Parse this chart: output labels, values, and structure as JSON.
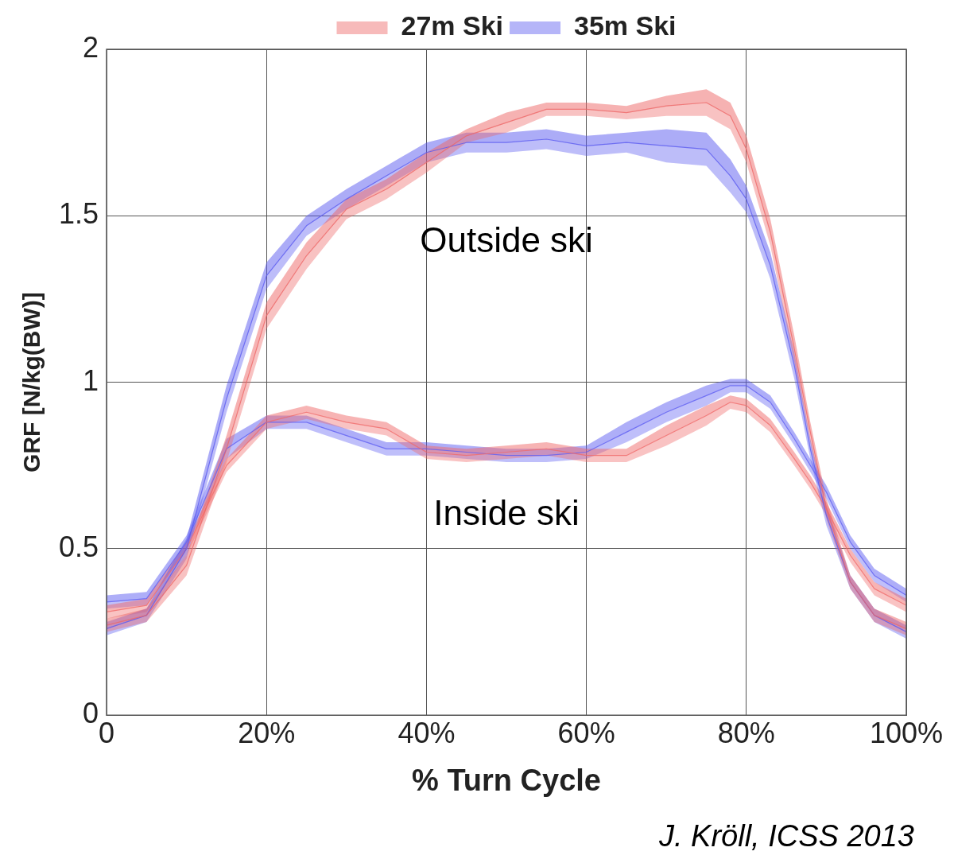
{
  "chart_data": {
    "type": "line",
    "xlabel": "% Turn Cycle",
    "ylabel": "GRF [N/kg(BW)]",
    "xlim": [
      0,
      100
    ],
    "ylim": [
      0,
      2
    ],
    "xticks": [
      0,
      {
        "value": 20,
        "label": "20%"
      },
      {
        "value": 40,
        "label": "40%"
      },
      {
        "value": 60,
        "label": "60%"
      },
      {
        "value": 80,
        "label": "80%"
      },
      {
        "value": 100,
        "label": "100%"
      }
    ],
    "yticks": [
      0,
      0.5,
      1,
      1.5,
      2
    ],
    "grid": true,
    "legend": "top",
    "x": [
      0,
      5,
      10,
      15,
      20,
      25,
      30,
      35,
      40,
      45,
      50,
      55,
      60,
      65,
      70,
      75,
      78,
      80,
      83,
      86,
      88,
      90,
      93,
      96,
      100
    ],
    "series": [
      {
        "name": "27m Ski",
        "color": "#ee6666",
        "values": [
          0.27,
          0.3,
          0.45,
          0.8,
          1.2,
          1.38,
          1.52,
          1.58,
          1.66,
          1.74,
          1.78,
          1.82,
          1.82,
          1.81,
          1.83,
          1.84,
          1.8,
          1.7,
          1.45,
          1.1,
          0.85,
          0.62,
          0.4,
          0.3,
          0.26
        ],
        "lower": [
          0.25,
          0.28,
          0.42,
          0.76,
          1.16,
          1.34,
          1.49,
          1.55,
          1.63,
          1.72,
          1.75,
          1.8,
          1.8,
          1.79,
          1.8,
          1.8,
          1.76,
          1.66,
          1.41,
          1.06,
          0.82,
          0.59,
          0.38,
          0.28,
          0.24
        ],
        "upper": [
          0.29,
          0.32,
          0.48,
          0.84,
          1.24,
          1.42,
          1.55,
          1.61,
          1.69,
          1.76,
          1.81,
          1.84,
          1.84,
          1.83,
          1.86,
          1.88,
          1.84,
          1.74,
          1.49,
          1.14,
          0.88,
          0.65,
          0.42,
          0.32,
          0.28
        ]
      },
      {
        "name": "35m Ski",
        "color": "#5a5af0",
        "values": [
          0.26,
          0.3,
          0.5,
          0.95,
          1.32,
          1.47,
          1.55,
          1.62,
          1.69,
          1.72,
          1.72,
          1.73,
          1.71,
          1.72,
          1.71,
          1.7,
          1.62,
          1.55,
          1.35,
          1.05,
          0.8,
          0.6,
          0.4,
          0.3,
          0.25
        ],
        "lower": [
          0.24,
          0.28,
          0.47,
          0.91,
          1.28,
          1.44,
          1.52,
          1.59,
          1.66,
          1.69,
          1.69,
          1.7,
          1.68,
          1.69,
          1.66,
          1.65,
          1.57,
          1.51,
          1.31,
          1.01,
          0.77,
          0.57,
          0.38,
          0.28,
          0.23
        ],
        "upper": [
          0.28,
          0.32,
          0.53,
          0.99,
          1.36,
          1.5,
          1.58,
          1.65,
          1.72,
          1.75,
          1.75,
          1.76,
          1.74,
          1.75,
          1.76,
          1.75,
          1.67,
          1.59,
          1.39,
          1.09,
          0.83,
          0.63,
          0.42,
          0.32,
          0.27
        ]
      },
      {
        "color": "#f06a6a",
        "values": [
          0.31,
          0.33,
          0.5,
          0.75,
          0.88,
          0.91,
          0.88,
          0.86,
          0.79,
          0.78,
          0.79,
          0.8,
          0.78,
          0.78,
          0.84,
          0.9,
          0.94,
          0.93,
          0.87,
          0.77,
          0.7,
          0.62,
          0.48,
          0.38,
          0.33
        ],
        "lower": [
          0.29,
          0.31,
          0.48,
          0.73,
          0.86,
          0.89,
          0.86,
          0.84,
          0.77,
          0.76,
          0.77,
          0.78,
          0.76,
          0.76,
          0.81,
          0.87,
          0.92,
          0.91,
          0.85,
          0.75,
          0.68,
          0.6,
          0.46,
          0.36,
          0.31
        ],
        "upper": [
          0.33,
          0.35,
          0.52,
          0.77,
          0.9,
          0.93,
          0.9,
          0.88,
          0.81,
          0.8,
          0.81,
          0.82,
          0.8,
          0.8,
          0.87,
          0.93,
          0.96,
          0.95,
          0.89,
          0.79,
          0.72,
          0.64,
          0.5,
          0.4,
          0.35
        ]
      },
      {
        "color": "#5e5ef2",
        "values": [
          0.34,
          0.35,
          0.52,
          0.8,
          0.88,
          0.88,
          0.84,
          0.8,
          0.8,
          0.79,
          0.78,
          0.78,
          0.79,
          0.85,
          0.91,
          0.96,
          0.99,
          0.99,
          0.94,
          0.83,
          0.75,
          0.67,
          0.52,
          0.42,
          0.36
        ],
        "lower": [
          0.32,
          0.33,
          0.5,
          0.77,
          0.86,
          0.86,
          0.82,
          0.78,
          0.78,
          0.77,
          0.76,
          0.76,
          0.77,
          0.82,
          0.88,
          0.93,
          0.97,
          0.97,
          0.92,
          0.81,
          0.73,
          0.65,
          0.5,
          0.4,
          0.34
        ],
        "upper": [
          0.36,
          0.37,
          0.54,
          0.83,
          0.9,
          0.9,
          0.86,
          0.82,
          0.82,
          0.81,
          0.8,
          0.8,
          0.81,
          0.88,
          0.94,
          0.99,
          1.01,
          1.01,
          0.96,
          0.85,
          0.77,
          0.69,
          0.54,
          0.44,
          0.38
        ]
      }
    ],
    "annotations": [
      "Outside ski",
      "Inside ski",
      "J. Kröll, ICSS 2013"
    ]
  }
}
